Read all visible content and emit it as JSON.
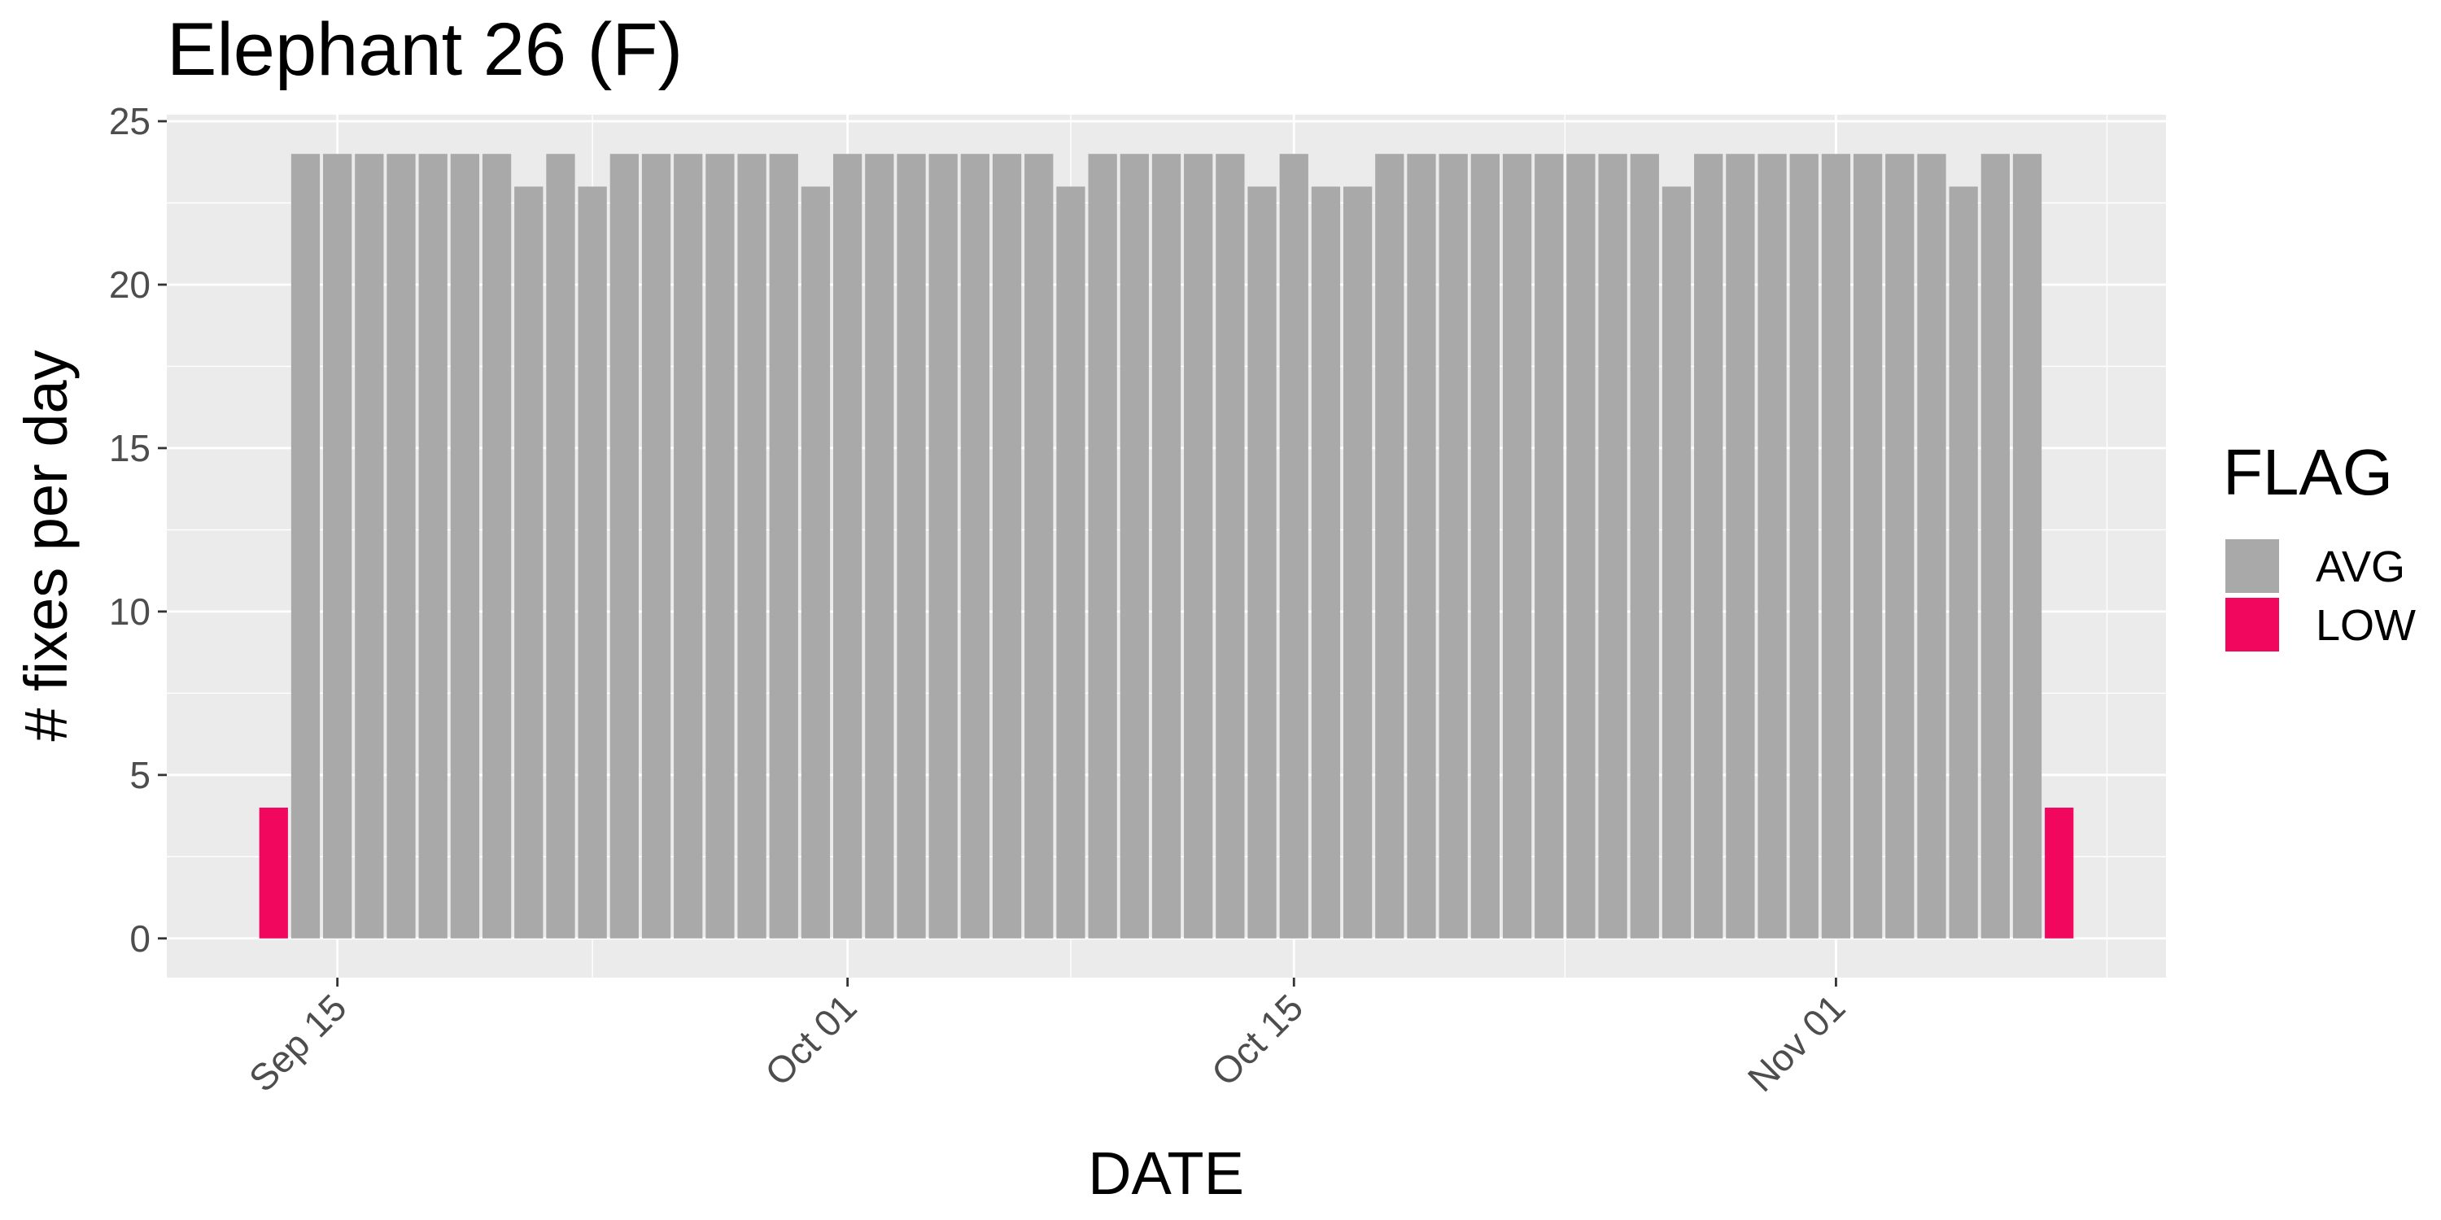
{
  "chart_data": {
    "type": "bar",
    "title": "Elephant 26 (F)",
    "x_label": "DATE",
    "y_label": "# fixes per day",
    "legend_title": "FLAG",
    "x": [
      "Sep 13",
      "Sep 14",
      "Sep 15",
      "Sep 16",
      "Sep 17",
      "Sep 18",
      "Sep 19",
      "Sep 20",
      "Sep 21",
      "Sep 22",
      "Sep 23",
      "Sep 24",
      "Sep 25",
      "Sep 26",
      "Sep 27",
      "Sep 28",
      "Sep 29",
      "Sep 30",
      "Oct 01",
      "Oct 02",
      "Oct 03",
      "Oct 04",
      "Oct 05",
      "Oct 06",
      "Oct 07",
      "Oct 08",
      "Oct 09",
      "Oct 10",
      "Oct 11",
      "Oct 12",
      "Oct 13",
      "Oct 14",
      "Oct 15",
      "Oct 16",
      "Oct 17",
      "Oct 18",
      "Oct 19",
      "Oct 20",
      "Oct 21",
      "Oct 22",
      "Oct 23",
      "Oct 24",
      "Oct 25",
      "Oct 26",
      "Oct 27",
      "Oct 28",
      "Oct 29",
      "Oct 30",
      "Oct 31",
      "Nov 01",
      "Nov 02",
      "Nov 03",
      "Nov 04",
      "Nov 05",
      "Nov 06",
      "Nov 07",
      "Nov 08"
    ],
    "series": [
      {
        "name": "AVG",
        "color": "#a9a9a9",
        "values": [
          null,
          24,
          24,
          24,
          24,
          24,
          24,
          24,
          23,
          24,
          23,
          24,
          24,
          24,
          24,
          24,
          24,
          23,
          24,
          24,
          24,
          24,
          24,
          24,
          24,
          23,
          24,
          24,
          24,
          24,
          24,
          23,
          24,
          23,
          23,
          24,
          24,
          24,
          24,
          24,
          24,
          24,
          24,
          24,
          23,
          24,
          24,
          24,
          24,
          24,
          24,
          24,
          24,
          23,
          24,
          24,
          null
        ]
      },
      {
        "name": "LOW",
        "color": "#f2075f",
        "values": [
          4,
          null,
          null,
          null,
          null,
          null,
          null,
          null,
          null,
          null,
          null,
          null,
          null,
          null,
          null,
          null,
          null,
          null,
          null,
          null,
          null,
          null,
          null,
          null,
          null,
          null,
          null,
          null,
          null,
          null,
          null,
          null,
          null,
          null,
          null,
          null,
          null,
          null,
          null,
          null,
          null,
          null,
          null,
          null,
          null,
          null,
          null,
          null,
          null,
          null,
          null,
          null,
          null,
          null,
          null,
          null,
          4
        ]
      }
    ],
    "xticks": [
      "Sep 15",
      "Oct 01",
      "Oct 15",
      "Nov 01"
    ],
    "ylim": [
      -1.2,
      25.2
    ],
    "yticks": [
      0,
      5,
      10,
      15,
      20,
      25
    ],
    "grid": true
  }
}
